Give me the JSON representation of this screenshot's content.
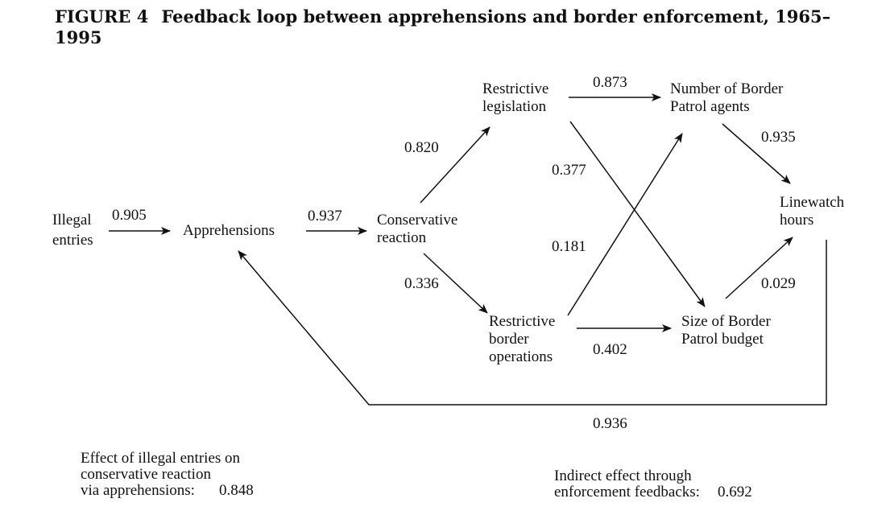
{
  "figure": {
    "number": "FIGURE 4",
    "title": "Feedback loop between apprehensions and border enforcement, 1965–1995"
  },
  "nodes": {
    "illegal_entries": [
      "Illegal",
      "entries"
    ],
    "apprehensions": [
      "Apprehensions"
    ],
    "conservative_reaction": [
      "Conservative",
      "reaction"
    ],
    "restrictive_legislation": [
      "Restrictive",
      "legislation"
    ],
    "restrictive_border_operations": [
      "Restrictive",
      "border",
      "operations"
    ],
    "border_patrol_agents": [
      "Number of Border",
      "Patrol agents"
    ],
    "border_patrol_budget": [
      "Size of Border",
      "Patrol budget"
    ],
    "linewatch_hours": [
      "Linewatch",
      "hours"
    ]
  },
  "edges": [
    {
      "from": "Illegal entries",
      "to": "Apprehensions",
      "coefficient": "0.905"
    },
    {
      "from": "Apprehensions",
      "to": "Conservative reaction",
      "coefficient": "0.937"
    },
    {
      "from": "Conservative reaction",
      "to": "Restrictive legislation",
      "coefficient": "0.820"
    },
    {
      "from": "Conservative reaction",
      "to": "Restrictive border operations",
      "coefficient": "0.336"
    },
    {
      "from": "Restrictive legislation",
      "to": "Number of Border Patrol agents",
      "coefficient": "0.873"
    },
    {
      "from": "Restrictive legislation",
      "to": "Size of Border Patrol budget",
      "coefficient": "0.377"
    },
    {
      "from": "Restrictive border operations",
      "to": "Number of Border Patrol agents",
      "coefficient": "0.181"
    },
    {
      "from": "Restrictive border operations",
      "to": "Size of Border Patrol budget",
      "coefficient": "0.402"
    },
    {
      "from": "Number of Border Patrol agents",
      "to": "Linewatch hours",
      "coefficient": "0.935"
    },
    {
      "from": "Size of Border Patrol budget",
      "to": "Linewatch hours",
      "coefficient": "0.029"
    },
    {
      "from": "Linewatch hours",
      "to": "Apprehensions",
      "coefficient": "0.936"
    }
  ],
  "notes": {
    "left": {
      "lines": [
        "Effect of illegal entries on",
        "conservative reaction",
        "via apprehensions:"
      ],
      "value": "0.848"
    },
    "right": {
      "lines": [
        "Indirect effect through",
        "enforcement feedbacks:"
      ],
      "value": "0.692"
    }
  }
}
